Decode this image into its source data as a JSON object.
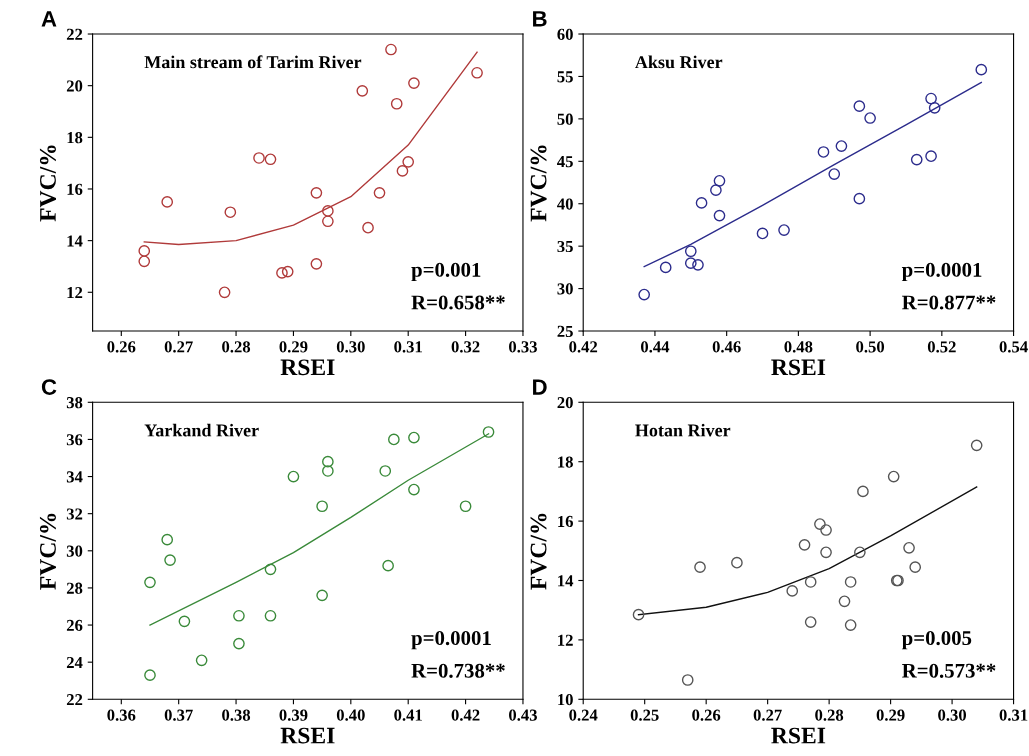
{
  "chart_data": [
    {
      "type": "scatter",
      "title": "Main stream of Tarim River",
      "xlabel": "RSEI",
      "ylabel": "FVC/%",
      "annotations": [
        "A",
        "p=0.001",
        "R=0.658**"
      ],
      "xlim": [
        0.255,
        0.33
      ],
      "xticks": [
        0.26,
        0.27,
        0.28,
        0.29,
        {
          "value": 0.3,
          "label": "0.30"
        },
        0.31,
        0.32,
        0.33
      ],
      "ylim": [
        10.5,
        22
      ],
      "yticks": [
        12,
        14,
        16,
        18,
        20,
        22
      ],
      "series": [
        {
          "marker": "circle",
          "color": "#b03a3a",
          "x": [
            0.264,
            0.264,
            0.268,
            0.278,
            0.279,
            0.284,
            0.286,
            0.288,
            0.289,
            0.294,
            0.294,
            0.296,
            0.296,
            0.302,
            0.303,
            0.305,
            0.307,
            0.308,
            0.309,
            0.31,
            0.311,
            0.322
          ],
          "values": [
            13.6,
            13.2,
            15.5,
            12.0,
            15.1,
            17.2,
            17.15,
            12.75,
            12.8,
            13.1,
            15.85,
            15.15,
            14.75,
            19.8,
            14.5,
            15.85,
            21.4,
            19.3,
            16.7,
            17.05,
            20.1,
            20.5
          ]
        },
        {
          "type": "line",
          "color": "#b03a3a",
          "x": [
            0.264,
            0.27,
            0.28,
            0.29,
            0.3,
            0.31,
            0.322
          ],
          "values": [
            13.95,
            13.85,
            14.0,
            14.6,
            15.7,
            17.7,
            21.3
          ]
        }
      ]
    },
    {
      "type": "scatter",
      "title": "Aksu River",
      "xlabel": "RSEI",
      "ylabel": "FVC/%",
      "annotations": [
        "B",
        "p=0.0001",
        "R=0.877**"
      ],
      "xlim": [
        0.42,
        0.54
      ],
      "xticks": [
        0.42,
        0.44,
        0.46,
        0.48,
        {
          "value": 0.5,
          "label": "0.50"
        },
        0.52,
        0.54
      ],
      "ylim": [
        25,
        60
      ],
      "yticks": [
        25,
        30,
        35,
        40,
        45,
        50,
        55,
        60
      ],
      "series": [
        {
          "marker": "circle",
          "color": "#2c2c8c",
          "x": [
            0.437,
            0.443,
            0.45,
            0.45,
            0.452,
            0.453,
            0.457,
            0.458,
            0.458,
            0.47,
            0.476,
            0.487,
            0.49,
            0.492,
            0.497,
            0.497,
            0.5,
            0.513,
            0.517,
            0.517,
            0.518,
            0.531
          ],
          "values": [
            29.3,
            32.5,
            34.4,
            33.0,
            32.8,
            40.1,
            41.6,
            42.7,
            38.6,
            36.5,
            36.9,
            46.1,
            43.5,
            46.8,
            51.5,
            40.6,
            50.1,
            45.2,
            45.6,
            52.4,
            51.3,
            55.8
          ]
        },
        {
          "type": "line",
          "color": "#2c2c8c",
          "x": [
            0.437,
            0.45,
            0.47,
            0.49,
            0.51,
            0.531
          ],
          "values": [
            32.6,
            35.2,
            39.8,
            44.6,
            49.3,
            54.3
          ]
        }
      ]
    },
    {
      "type": "scatter",
      "title": "Yarkand River",
      "xlabel": "RSEI",
      "ylabel": "FVC/%",
      "annotations": [
        "C",
        "p=0.0001",
        "R=0.738**"
      ],
      "xlim": [
        0.355,
        0.43
      ],
      "xticks": [
        0.36,
        0.37,
        0.38,
        0.39,
        {
          "value": 0.4,
          "label": "0.40"
        },
        0.41,
        0.42,
        0.43
      ],
      "ylim": [
        22,
        38
      ],
      "yticks": [
        22,
        24,
        26,
        28,
        30,
        32,
        34,
        36,
        38
      ],
      "series": [
        {
          "marker": "circle",
          "color": "#3a8a3a",
          "x": [
            0.365,
            0.365,
            0.368,
            0.3685,
            0.371,
            0.374,
            0.3805,
            0.3805,
            0.386,
            0.386,
            0.39,
            0.395,
            0.395,
            0.396,
            0.396,
            0.406,
            0.4065,
            0.4075,
            0.411,
            0.411,
            0.42,
            0.424
          ],
          "values": [
            28.3,
            23.3,
            30.6,
            29.5,
            26.2,
            24.1,
            26.5,
            25.0,
            29.0,
            26.5,
            34.0,
            32.4,
            27.6,
            34.8,
            34.3,
            34.3,
            29.2,
            36.0,
            33.3,
            36.1,
            32.4,
            36.4
          ]
        },
        {
          "type": "line",
          "color": "#3a8a3a",
          "x": [
            0.365,
            0.38,
            0.39,
            0.4,
            0.41,
            0.424
          ],
          "values": [
            26.0,
            28.3,
            29.9,
            31.8,
            33.8,
            36.3
          ]
        }
      ]
    },
    {
      "type": "scatter",
      "title": "Hotan River",
      "xlabel": "RSEI",
      "ylabel": "FVC/%",
      "annotations": [
        "D",
        "p=0.005",
        "R=0.573**"
      ],
      "xlim": [
        0.24,
        0.31
      ],
      "xticks": [
        0.24,
        0.25,
        0.26,
        0.27,
        0.28,
        0.29,
        {
          "value": 0.3,
          "label": "0.30"
        },
        0.31
      ],
      "ylim": [
        10,
        20
      ],
      "yticks": [
        10,
        12,
        14,
        16,
        18,
        20
      ],
      "series": [
        {
          "marker": "circle",
          "color": "#555555",
          "x": [
            0.249,
            0.257,
            0.259,
            0.265,
            0.274,
            0.276,
            0.277,
            0.277,
            0.2785,
            0.2795,
            0.2795,
            0.2825,
            0.2835,
            0.2835,
            0.285,
            0.2855,
            0.2905,
            0.291,
            0.2912,
            0.293,
            0.294,
            0.304
          ],
          "values": [
            12.85,
            10.65,
            14.45,
            14.6,
            13.65,
            15.2,
            13.95,
            12.6,
            15.9,
            15.7,
            14.95,
            13.3,
            13.95,
            12.5,
            14.95,
            17.0,
            17.5,
            14.0,
            14.0,
            15.1,
            14.45,
            18.55
          ]
        },
        {
          "type": "line",
          "color": "#111111",
          "x": [
            0.249,
            0.26,
            0.27,
            0.28,
            0.29,
            0.304
          ],
          "values": [
            12.85,
            13.1,
            13.6,
            14.4,
            15.5,
            17.15
          ]
        }
      ]
    }
  ]
}
